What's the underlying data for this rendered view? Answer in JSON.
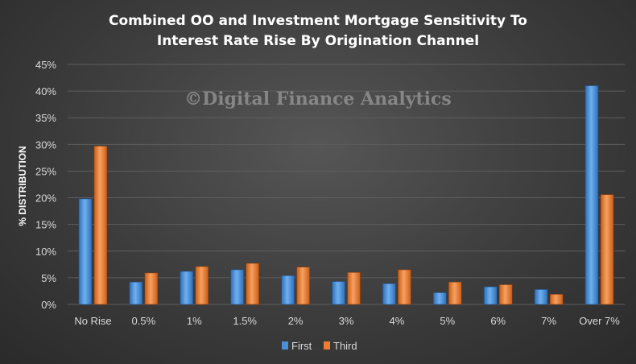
{
  "watermark": "©Digital Finance Analytics",
  "chart_data": {
    "type": "bar",
    "title": [
      "Combined OO and Investment Mortgage Sensitivity To",
      "Interest Rate Rise By Origination Channel"
    ],
    "xlabel": "",
    "ylabel": "% DISTRIBUTION",
    "ylim": [
      0,
      45
    ],
    "yticks": [
      "0%",
      "5%",
      "10%",
      "15%",
      "20%",
      "25%",
      "30%",
      "35%",
      "40%",
      "45%"
    ],
    "ytick_values": [
      0,
      5,
      10,
      15,
      20,
      25,
      30,
      35,
      40,
      45
    ],
    "grid": true,
    "legend": "bottom",
    "categories": [
      "No Rise",
      "0.5%",
      "1%",
      "1.5%",
      "2%",
      "3%",
      "4%",
      "5%",
      "6%",
      "7%",
      "Over 7%"
    ],
    "series": [
      {
        "name": "First",
        "color": "#4a90d9",
        "values": [
          19.8,
          4.2,
          6.2,
          6.5,
          5.4,
          4.3,
          3.9,
          2.2,
          3.3,
          2.8,
          41.0
        ]
      },
      {
        "name": "Third",
        "color": "#ed7d31",
        "values": [
          29.7,
          5.9,
          7.1,
          7.7,
          7.0,
          6.0,
          6.5,
          4.2,
          3.7,
          1.9,
          20.6
        ]
      }
    ]
  }
}
